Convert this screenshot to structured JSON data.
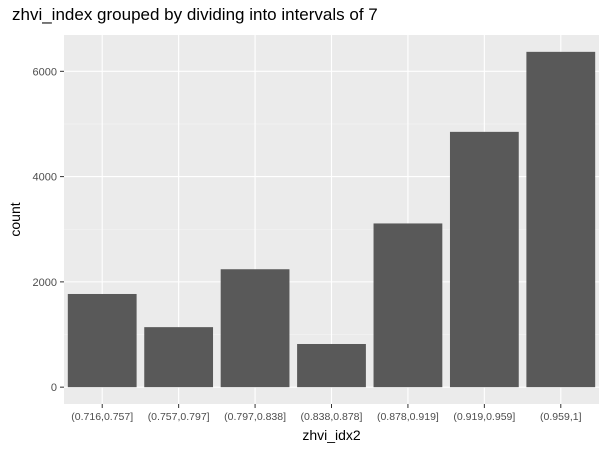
{
  "chart_data": {
    "type": "bar",
    "title": "zhvi_index grouped by dividing into intervals of 7",
    "xlabel": "zhvi_idx2",
    "ylabel": "count",
    "categories": [
      "(0.716,0.757]",
      "(0.757,0.797]",
      "(0.797,0.838]",
      "(0.838,0.878]",
      "(0.878,0.919]",
      "(0.919,0.959]",
      "(0.959,1]"
    ],
    "values": [
      1770,
      1140,
      2240,
      820,
      3110,
      4850,
      6370
    ],
    "yticks": [
      0,
      2000,
      4000,
      6000
    ],
    "ylim": [
      -320,
      6690
    ],
    "grid": true,
    "legend": "none",
    "colors": {
      "bar": "#595959",
      "panel": "#ebebeb",
      "grid_major": "#ffffff",
      "axis_text": "#4d4d4d"
    }
  }
}
